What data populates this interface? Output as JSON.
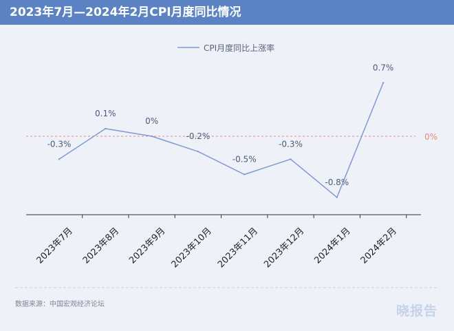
{
  "header": {
    "title": "2023年7月—2024年2月CPI月度同比情况"
  },
  "chart_data": {
    "type": "line",
    "categories": [
      "2023年7月",
      "2023年8月",
      "2023年9月",
      "2023年10月",
      "2023年11月",
      "2023年12月",
      "2024年1月",
      "2024年2月"
    ],
    "series": [
      {
        "name": "CPI月度同比上涨率",
        "values": [
          -0.3,
          0.1,
          0,
          -0.2,
          -0.5,
          -0.3,
          -0.8,
          0.7
        ]
      }
    ],
    "data_labels": [
      "-0.3%",
      "0.1%",
      "0%",
      "-0.2%",
      "-0.5%",
      "-0.3%",
      "-0.8%",
      "0.7%"
    ],
    "reference_line": {
      "value": 0,
      "label": "0%"
    },
    "ylim": [
      -1.0,
      0.8
    ],
    "legend_position": "top-center",
    "grid": false,
    "colors": {
      "line": "#7f99d0",
      "reference": "#e28b7a",
      "label": "#4a5a78"
    }
  },
  "footer": {
    "source": "数据来源：中国宏观经济论坛",
    "brand": "晓报告"
  }
}
